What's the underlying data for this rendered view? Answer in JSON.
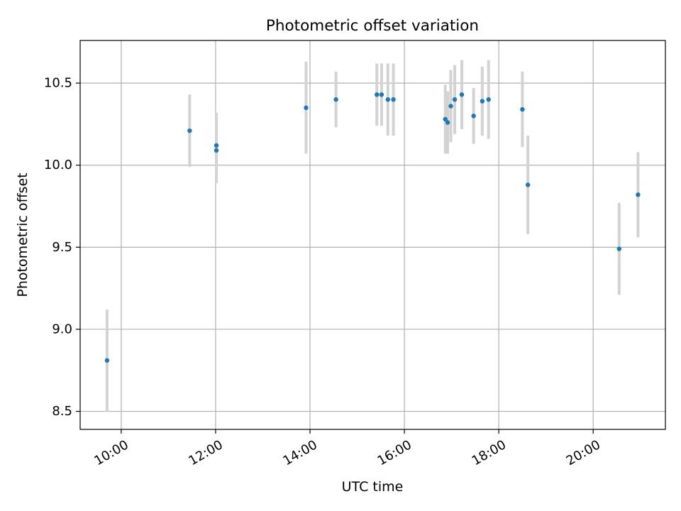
{
  "chart_data": {
    "type": "scatter",
    "title": "Photometric offset variation",
    "xlabel": "UTC time",
    "ylabel": "Photometric offset",
    "x_unit": "hours",
    "xlim": [
      9.13,
      21.53
    ],
    "ylim": [
      8.39,
      10.76
    ],
    "x_ticks": [
      {
        "value": 10,
        "label": "10:00"
      },
      {
        "value": 12,
        "label": "12:00"
      },
      {
        "value": 14,
        "label": "14:00"
      },
      {
        "value": 16,
        "label": "16:00"
      },
      {
        "value": 18,
        "label": "18:00"
      },
      {
        "value": 20,
        "label": "20:00"
      }
    ],
    "y_ticks": [
      {
        "value": 8.5,
        "label": "8.5"
      },
      {
        "value": 9.0,
        "label": "9.0"
      },
      {
        "value": 9.5,
        "label": "9.5"
      },
      {
        "value": 10.0,
        "label": "10.0"
      },
      {
        "value": 10.5,
        "label": "10.5"
      }
    ],
    "grid": true,
    "colors": {
      "point": "#1f77b4",
      "errorbar": "#d3d3d3",
      "grid": "#b0b0b0"
    },
    "series": [
      {
        "points": [
          {
            "x": "09:42",
            "y": 8.81,
            "err": 0.31
          },
          {
            "x": "11:27",
            "y": 10.21,
            "err": 0.22
          },
          {
            "x": "12:01",
            "y": 10.12,
            "err": 0.2
          },
          {
            "x": "12:01",
            "y": 10.09,
            "err": 0.2
          },
          {
            "x": "13:55",
            "y": 10.35,
            "err": 0.28
          },
          {
            "x": "14:33",
            "y": 10.4,
            "err": 0.17
          },
          {
            "x": "15:25",
            "y": 10.43,
            "err": 0.19
          },
          {
            "x": "15:31",
            "y": 10.43,
            "err": 0.19
          },
          {
            "x": "15:39",
            "y": 10.4,
            "err": 0.22
          },
          {
            "x": "15:46",
            "y": 10.4,
            "err": 0.22
          },
          {
            "x": "16:52",
            "y": 10.28,
            "err": 0.21
          },
          {
            "x": "16:55",
            "y": 10.26,
            "err": 0.19
          },
          {
            "x": "16:59",
            "y": 10.36,
            "err": 0.22
          },
          {
            "x": "17:04",
            "y": 10.4,
            "err": 0.21
          },
          {
            "x": "17:13",
            "y": 10.43,
            "err": 0.21
          },
          {
            "x": "17:28",
            "y": 10.3,
            "err": 0.17
          },
          {
            "x": "17:39",
            "y": 10.39,
            "err": 0.21
          },
          {
            "x": "17:47",
            "y": 10.4,
            "err": 0.24
          },
          {
            "x": "18:30",
            "y": 10.34,
            "err": 0.23
          },
          {
            "x": "18:37",
            "y": 9.88,
            "err": 0.3
          },
          {
            "x": "20:33",
            "y": 9.49,
            "err": 0.28
          },
          {
            "x": "20:57",
            "y": 9.82,
            "err": 0.26
          }
        ]
      }
    ]
  }
}
